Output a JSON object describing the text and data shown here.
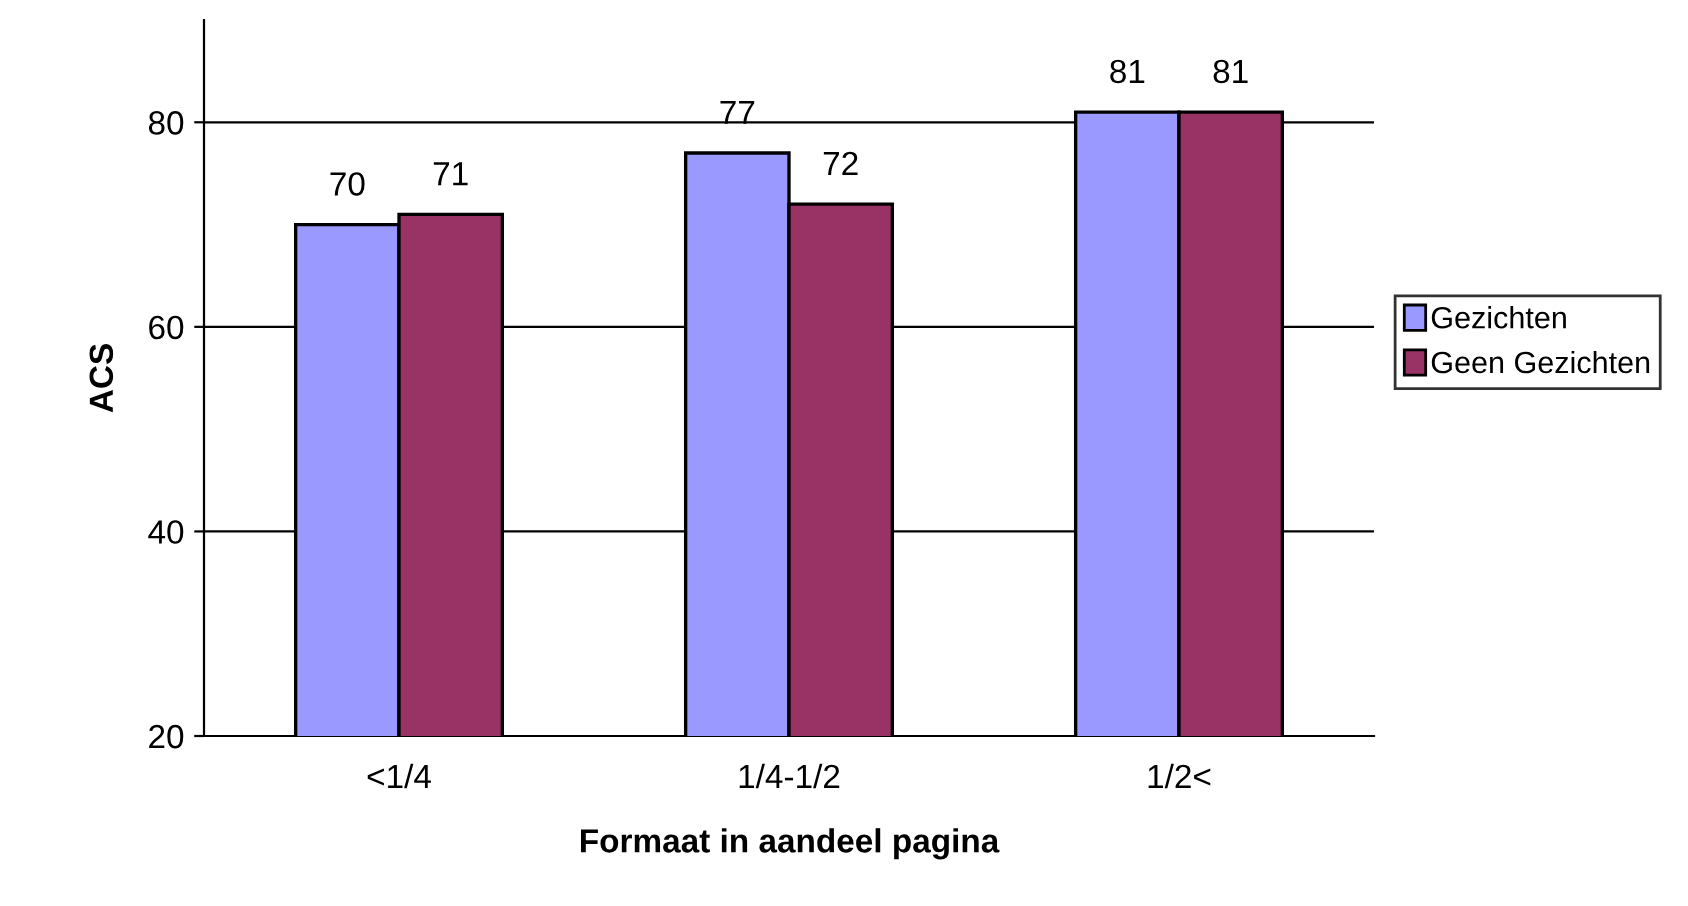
{
  "chart_data": {
    "type": "bar",
    "xlabel": "Formaat in aandeel pagina",
    "ylabel": "ACS",
    "categories": [
      "<1/4",
      "1/4-1/2",
      "1/2<"
    ],
    "series": [
      {
        "name": "Gezichten",
        "color": "#9999ff",
        "values": [
          70,
          77,
          81
        ]
      },
      {
        "name": "Geen Gezichten",
        "color": "#993366",
        "values": [
          71,
          72,
          81
        ]
      }
    ],
    "ylim": [
      20,
      90
    ],
    "yticks": [
      20,
      40,
      60,
      80
    ],
    "grid": "y",
    "legend": "right",
    "data_labels": true
  }
}
